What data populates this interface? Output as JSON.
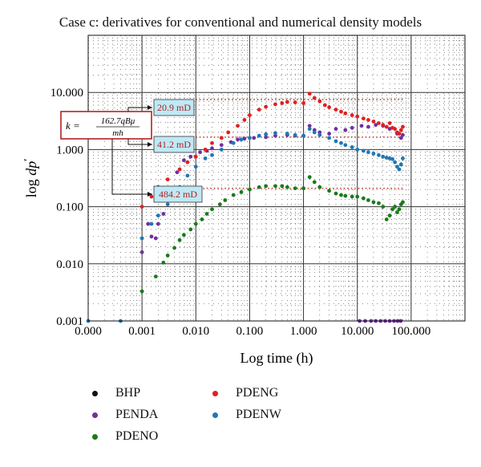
{
  "chart_data": {
    "type": "scatter",
    "title": "Case c: derivatives for conventional and numerical density models",
    "xlabel": "Log time (h)",
    "ylabel_main": "log ",
    "ylabel_var": "dp",
    "ylabel_prime": "′",
    "x_scale": "log",
    "y_scale": "log",
    "xlim": [
      0.0001,
      1000
    ],
    "ylim": [
      0.001,
      100
    ],
    "x_ticks": [
      {
        "v": 0.0001,
        "label": "0.000"
      },
      {
        "v": 0.001,
        "label": "0.001"
      },
      {
        "v": 0.01,
        "label": "0.010"
      },
      {
        "v": 0.1,
        "label": "0.100"
      },
      {
        "v": 1,
        "label": "1.000"
      },
      {
        "v": 10,
        "label": "10.000"
      },
      {
        "v": 100,
        "label": "100.000"
      }
    ],
    "y_ticks": [
      {
        "v": 0.001,
        "label": "0.001"
      },
      {
        "v": 0.01,
        "label": "0.010"
      },
      {
        "v": 0.1,
        "label": "0.100"
      },
      {
        "v": 1,
        "label": "1.000"
      },
      {
        "v": 10,
        "label": "10.000"
      }
    ],
    "grid": true,
    "legend_position": "bottom",
    "formula": {
      "lhs": "k =",
      "numerator": "162.7qBμ",
      "denominator": "mh"
    },
    "annotations": [
      {
        "label": "20.9 mD",
        "y": 7.5
      },
      {
        "label": "41.2 mD",
        "y": 1.65
      },
      {
        "label": "484.2 mD",
        "y": 0.21
      }
    ],
    "series": [
      {
        "name": "BHP",
        "color": "#111111",
        "points": []
      },
      {
        "name": "PENDA",
        "color": "#7030a0",
        "points": [
          [
            0.001,
            0.016
          ],
          [
            0.0013,
            0.05
          ],
          [
            0.0015,
            0.03
          ],
          [
            0.0018,
            0.028
          ],
          [
            0.002,
            0.05
          ],
          [
            0.0025,
            0.075
          ],
          [
            0.003,
            0.13
          ],
          [
            0.0045,
            0.4
          ],
          [
            0.006,
            0.65
          ],
          [
            0.008,
            0.75
          ],
          [
            0.012,
            0.9
          ],
          [
            0.016,
            0.95
          ],
          [
            0.02,
            1.05
          ],
          [
            0.03,
            1.2
          ],
          [
            0.045,
            1.35
          ],
          [
            0.06,
            1.5
          ],
          [
            0.08,
            1.55
          ],
          [
            0.12,
            1.6
          ],
          [
            0.2,
            1.65
          ],
          [
            0.3,
            1.75
          ],
          [
            0.5,
            1.8
          ],
          [
            0.7,
            1.75
          ],
          [
            1.0,
            1.75
          ],
          [
            1.3,
            2.6
          ],
          [
            1.6,
            2.2
          ],
          [
            2.0,
            2.0
          ],
          [
            3.0,
            1.9
          ],
          [
            4.0,
            2.3
          ],
          [
            6.0,
            2.2
          ],
          [
            8.0,
            2.4
          ],
          [
            12.0,
            2.6
          ],
          [
            16.0,
            2.5
          ],
          [
            22.0,
            2.7
          ],
          [
            30.0,
            2.6
          ],
          [
            40.0,
            2.3
          ],
          [
            55.0,
            1.9
          ],
          [
            65.0,
            1.6
          ],
          [
            70.0,
            1.8
          ],
          [
            11,
            0.001
          ],
          [
            14,
            0.001
          ],
          [
            18,
            0.001
          ],
          [
            22,
            0.001
          ],
          [
            27,
            0.001
          ],
          [
            33,
            0.001
          ],
          [
            40,
            0.001
          ],
          [
            48,
            0.001
          ],
          [
            56,
            0.001
          ],
          [
            64,
            0.001
          ]
        ]
      },
      {
        "name": "PDENO",
        "color": "#1a7a1a",
        "points": [
          [
            0.001,
            0.0033
          ],
          [
            0.0018,
            0.006
          ],
          [
            0.0025,
            0.0105
          ],
          [
            0.003,
            0.014
          ],
          [
            0.004,
            0.019
          ],
          [
            0.005,
            0.026
          ],
          [
            0.006,
            0.032
          ],
          [
            0.008,
            0.04
          ],
          [
            0.01,
            0.05
          ],
          [
            0.013,
            0.06
          ],
          [
            0.016,
            0.075
          ],
          [
            0.02,
            0.09
          ],
          [
            0.028,
            0.11
          ],
          [
            0.035,
            0.13
          ],
          [
            0.05,
            0.16
          ],
          [
            0.07,
            0.18
          ],
          [
            0.1,
            0.2
          ],
          [
            0.15,
            0.22
          ],
          [
            0.2,
            0.23
          ],
          [
            0.3,
            0.23
          ],
          [
            0.4,
            0.23
          ],
          [
            0.5,
            0.22
          ],
          [
            0.7,
            0.21
          ],
          [
            1.0,
            0.21
          ],
          [
            1.3,
            0.33
          ],
          [
            1.6,
            0.27
          ],
          [
            2.0,
            0.22
          ],
          [
            3.0,
            0.19
          ],
          [
            4.0,
            0.17
          ],
          [
            5.0,
            0.16
          ],
          [
            6.0,
            0.155
          ],
          [
            8.0,
            0.15
          ],
          [
            10.0,
            0.15
          ],
          [
            13.0,
            0.14
          ],
          [
            16.0,
            0.13
          ],
          [
            20.0,
            0.12
          ],
          [
            25.0,
            0.115
          ],
          [
            30.0,
            0.1
          ],
          [
            35.0,
            0.06
          ],
          [
            40.0,
            0.07
          ],
          [
            45.0,
            0.09
          ],
          [
            50.0,
            0.1
          ],
          [
            55.0,
            0.08
          ],
          [
            60.0,
            0.09
          ],
          [
            65.0,
            0.11
          ],
          [
            70.0,
            0.12
          ]
        ]
      },
      {
        "name": "PDENG",
        "color": "#e02020",
        "points": [
          [
            0.001,
            0.1
          ],
          [
            0.0015,
            0.15
          ],
          [
            0.002,
            0.22
          ],
          [
            0.003,
            0.3
          ],
          [
            0.005,
            0.45
          ],
          [
            0.007,
            0.6
          ],
          [
            0.01,
            0.75
          ],
          [
            0.015,
            1.0
          ],
          [
            0.02,
            1.3
          ],
          [
            0.03,
            1.6
          ],
          [
            0.04,
            2.0
          ],
          [
            0.06,
            2.6
          ],
          [
            0.08,
            3.3
          ],
          [
            0.1,
            4.0
          ],
          [
            0.15,
            5.0
          ],
          [
            0.2,
            5.6
          ],
          [
            0.3,
            6.2
          ],
          [
            0.4,
            6.5
          ],
          [
            0.5,
            6.8
          ],
          [
            0.7,
            6.7
          ],
          [
            1.0,
            6.5
          ],
          [
            1.3,
            9.5
          ],
          [
            1.6,
            8.0
          ],
          [
            2.0,
            7.0
          ],
          [
            2.5,
            6.0
          ],
          [
            3.0,
            5.5
          ],
          [
            4.0,
            5.0
          ],
          [
            5.0,
            4.6
          ],
          [
            6.0,
            4.3
          ],
          [
            8.0,
            4.0
          ],
          [
            10.0,
            3.8
          ],
          [
            13.0,
            3.5
          ],
          [
            16.0,
            3.3
          ],
          [
            20.0,
            3.1
          ],
          [
            25.0,
            2.9
          ],
          [
            30.0,
            2.7
          ],
          [
            35.0,
            2.5
          ],
          [
            40.0,
            2.9
          ],
          [
            45.0,
            2.4
          ],
          [
            50.0,
            2.3
          ],
          [
            55.0,
            2.0
          ],
          [
            60.0,
            1.9
          ],
          [
            65.0,
            2.2
          ],
          [
            70.0,
            2.5
          ]
        ]
      },
      {
        "name": "PDENW",
        "color": "#1f77b4",
        "points": [
          [
            0.0001,
            0.001
          ],
          [
            0.0004,
            0.001
          ],
          [
            0.001,
            0.028
          ],
          [
            0.0015,
            0.05
          ],
          [
            0.002,
            0.07
          ],
          [
            0.003,
            0.11
          ],
          [
            0.005,
            0.22
          ],
          [
            0.007,
            0.35
          ],
          [
            0.01,
            0.5
          ],
          [
            0.015,
            0.7
          ],
          [
            0.02,
            0.8
          ],
          [
            0.03,
            1.0
          ],
          [
            0.05,
            1.3
          ],
          [
            0.07,
            1.5
          ],
          [
            0.1,
            1.6
          ],
          [
            0.15,
            1.75
          ],
          [
            0.2,
            1.85
          ],
          [
            0.3,
            1.95
          ],
          [
            0.5,
            1.9
          ],
          [
            0.7,
            1.8
          ],
          [
            1.0,
            1.75
          ],
          [
            1.3,
            2.3
          ],
          [
            1.6,
            2.0
          ],
          [
            2.0,
            1.8
          ],
          [
            3.0,
            1.6
          ],
          [
            4.0,
            1.4
          ],
          [
            5.0,
            1.3
          ],
          [
            6.0,
            1.2
          ],
          [
            8.0,
            1.1
          ],
          [
            10.0,
            1.0
          ],
          [
            13.0,
            0.95
          ],
          [
            16.0,
            0.9
          ],
          [
            20.0,
            0.85
          ],
          [
            25.0,
            0.8
          ],
          [
            30.0,
            0.75
          ],
          [
            35.0,
            0.72
          ],
          [
            40.0,
            0.7
          ],
          [
            45.0,
            0.68
          ],
          [
            50.0,
            0.6
          ],
          [
            55.0,
            0.5
          ],
          [
            60.0,
            0.45
          ],
          [
            65.0,
            0.55
          ],
          [
            70.0,
            0.7
          ]
        ]
      }
    ]
  }
}
